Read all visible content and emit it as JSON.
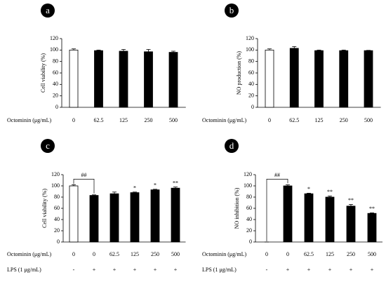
{
  "chart_data": [
    {
      "type": "bar",
      "panel": "a",
      "y_label": "Cell viability (%)",
      "x_label": "Octominin (μg/mL)",
      "categories": [
        "0",
        "62.5",
        "125",
        "250",
        "500"
      ],
      "values": [
        100,
        99,
        98,
        97,
        96
      ],
      "errors": [
        2,
        1,
        3,
        4,
        2
      ],
      "colors": [
        "#ffffff",
        "#000000",
        "#000000",
        "#000000",
        "#000000"
      ],
      "ylim": [
        0,
        120
      ],
      "yticks": [
        0,
        20,
        40,
        60,
        80,
        100,
        120
      ]
    },
    {
      "type": "bar",
      "panel": "b",
      "y_label": "NO production (%)",
      "x_label": "Octominin (μg/mL)",
      "categories": [
        "0",
        "62.5",
        "125",
        "250",
        "500"
      ],
      "values": [
        100,
        103,
        99,
        99,
        99
      ],
      "errors": [
        2,
        3,
        1,
        1,
        0.5
      ],
      "colors": [
        "#ffffff",
        "#000000",
        "#000000",
        "#000000",
        "#000000"
      ],
      "ylim": [
        0,
        120
      ],
      "yticks": [
        0,
        20,
        40,
        60,
        80,
        100,
        120
      ]
    },
    {
      "type": "bar",
      "panel": "c",
      "y_label": "Cell viability (%)",
      "x_label": "Octominin (μg/mL)",
      "lps_label": "LPS (1 μg/mL)",
      "lps": [
        "-",
        "+",
        "+",
        "+",
        "+",
        "+"
      ],
      "categories": [
        "0",
        "0",
        "62.5",
        "125",
        "250",
        "500"
      ],
      "values": [
        100,
        83,
        86,
        88,
        93,
        96
      ],
      "errors": [
        2,
        1,
        3,
        1,
        1,
        2
      ],
      "annotations": [
        null,
        null,
        null,
        "*",
        "*",
        "**"
      ],
      "bracket_label": "##",
      "colors": [
        "#ffffff",
        "#000000",
        "#000000",
        "#000000",
        "#000000",
        "#000000"
      ],
      "ylim": [
        0,
        120
      ],
      "yticks": [
        0,
        20,
        40,
        60,
        80,
        100,
        120
      ]
    },
    {
      "type": "bar",
      "panel": "d",
      "y_label": "NO inhibition (%)",
      "x_label": "Octominin (μg/mL)",
      "lps_label": "LPS (1 μg/mL)",
      "lps": [
        "-",
        "+",
        "+",
        "+",
        "+",
        "+"
      ],
      "categories": [
        "0",
        "0",
        "62.5",
        "125",
        "250",
        "500"
      ],
      "values": [
        0,
        100,
        86,
        80,
        64,
        51
      ],
      "errors": [
        0,
        2,
        1,
        2,
        3,
        1
      ],
      "annotations": [
        null,
        null,
        "*",
        "**",
        "**",
        "**"
      ],
      "bracket_label": "##",
      "colors": [
        "#ffffff",
        "#000000",
        "#000000",
        "#000000",
        "#000000",
        "#000000"
      ],
      "ylim": [
        0,
        120
      ],
      "yticks": [
        0,
        20,
        40,
        60,
        80,
        100,
        120
      ]
    }
  ]
}
